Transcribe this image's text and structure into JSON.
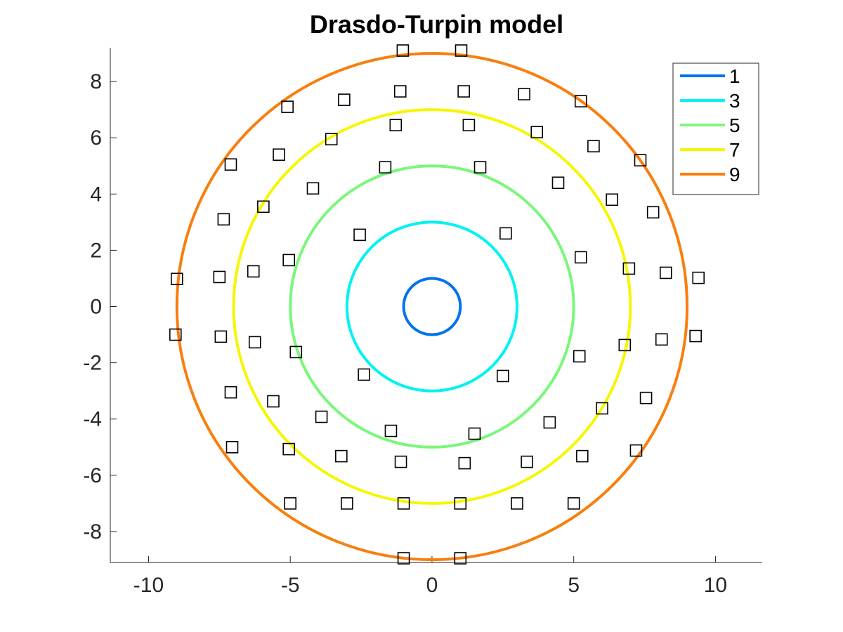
{
  "chart_data": {
    "type": "line",
    "title": "Drasdo-Turpin model",
    "xlabel": "",
    "ylabel": "",
    "xlim": [
      -11.35,
      11.65
    ],
    "ylim": [
      -9.1,
      9.2
    ],
    "xticks": [
      -10,
      -5,
      0,
      5,
      10
    ],
    "yticks": [
      -8,
      -6,
      -4,
      -2,
      0,
      2,
      4,
      6,
      8
    ],
    "grid": false,
    "legend": {
      "position": "top-right"
    },
    "series": [
      {
        "name": "1",
        "radius": 1,
        "color": "#0072EE"
      },
      {
        "name": "3",
        "radius": 3,
        "color": "#00F2F2"
      },
      {
        "name": "5",
        "radius": 5,
        "color": "#7AF77A"
      },
      {
        "name": "7",
        "radius": 7,
        "color": "#F6F600"
      },
      {
        "name": "9",
        "radius": 9,
        "color": "#F97E0D"
      }
    ],
    "markers": {
      "shape": "square",
      "color": "#000000",
      "points": [
        [
          -1.03,
          9.1
        ],
        [
          1.03,
          9.1
        ],
        [
          -1.12,
          7.65
        ],
        [
          1.12,
          7.65
        ],
        [
          -3.1,
          7.35
        ],
        [
          3.25,
          7.55
        ],
        [
          -5.1,
          7.1
        ],
        [
          5.25,
          7.3
        ],
        [
          -1.28,
          6.45
        ],
        [
          1.3,
          6.45
        ],
        [
          -3.55,
          5.95
        ],
        [
          3.7,
          6.2
        ],
        [
          -5.4,
          5.4
        ],
        [
          5.7,
          5.7
        ],
        [
          -7.1,
          5.05
        ],
        [
          7.35,
          5.2
        ],
        [
          -1.65,
          4.95
        ],
        [
          1.7,
          4.95
        ],
        [
          -4.2,
          4.2
        ],
        [
          4.45,
          4.4
        ],
        [
          -5.95,
          3.55
        ],
        [
          6.35,
          3.8
        ],
        [
          -7.35,
          3.1
        ],
        [
          7.8,
          3.35
        ],
        [
          -2.55,
          2.55
        ],
        [
          2.6,
          2.6
        ],
        [
          -5.05,
          1.65
        ],
        [
          5.25,
          1.75
        ],
        [
          -6.3,
          1.25
        ],
        [
          6.95,
          1.35
        ],
        [
          -7.5,
          1.05
        ],
        [
          8.25,
          1.2
        ],
        [
          -9.0,
          0.98
        ],
        [
          9.4,
          1.02
        ],
        [
          -9.05,
          -1.0
        ],
        [
          9.3,
          -1.05
        ],
        [
          -7.45,
          -1.07
        ],
        [
          8.1,
          -1.17
        ],
        [
          -6.25,
          -1.27
        ],
        [
          6.8,
          -1.37
        ],
        [
          -4.8,
          -1.62
        ],
        [
          5.2,
          -1.77
        ],
        [
          -2.4,
          -2.42
        ],
        [
          2.5,
          -2.47
        ],
        [
          -7.1,
          -3.05
        ],
        [
          7.55,
          -3.25
        ],
        [
          -5.6,
          -3.37
        ],
        [
          6.0,
          -3.62
        ],
        [
          -3.9,
          -3.92
        ],
        [
          4.15,
          -4.12
        ],
        [
          -1.45,
          -4.42
        ],
        [
          1.5,
          -4.52
        ],
        [
          -7.05,
          -5.0
        ],
        [
          7.2,
          -5.12
        ],
        [
          -5.05,
          -5.07
        ],
        [
          5.3,
          -5.32
        ],
        [
          -3.2,
          -5.32
        ],
        [
          3.35,
          -5.52
        ],
        [
          -1.1,
          -5.52
        ],
        [
          1.15,
          -5.57
        ],
        [
          -5.0,
          -7.0
        ],
        [
          -3.0,
          -7.0
        ],
        [
          -1.0,
          -7.0
        ],
        [
          1.0,
          -7.0
        ],
        [
          3.0,
          -7.0
        ],
        [
          5.0,
          -7.0
        ],
        [
          -1.0,
          -8.95
        ],
        [
          1.0,
          -8.95
        ]
      ]
    }
  }
}
